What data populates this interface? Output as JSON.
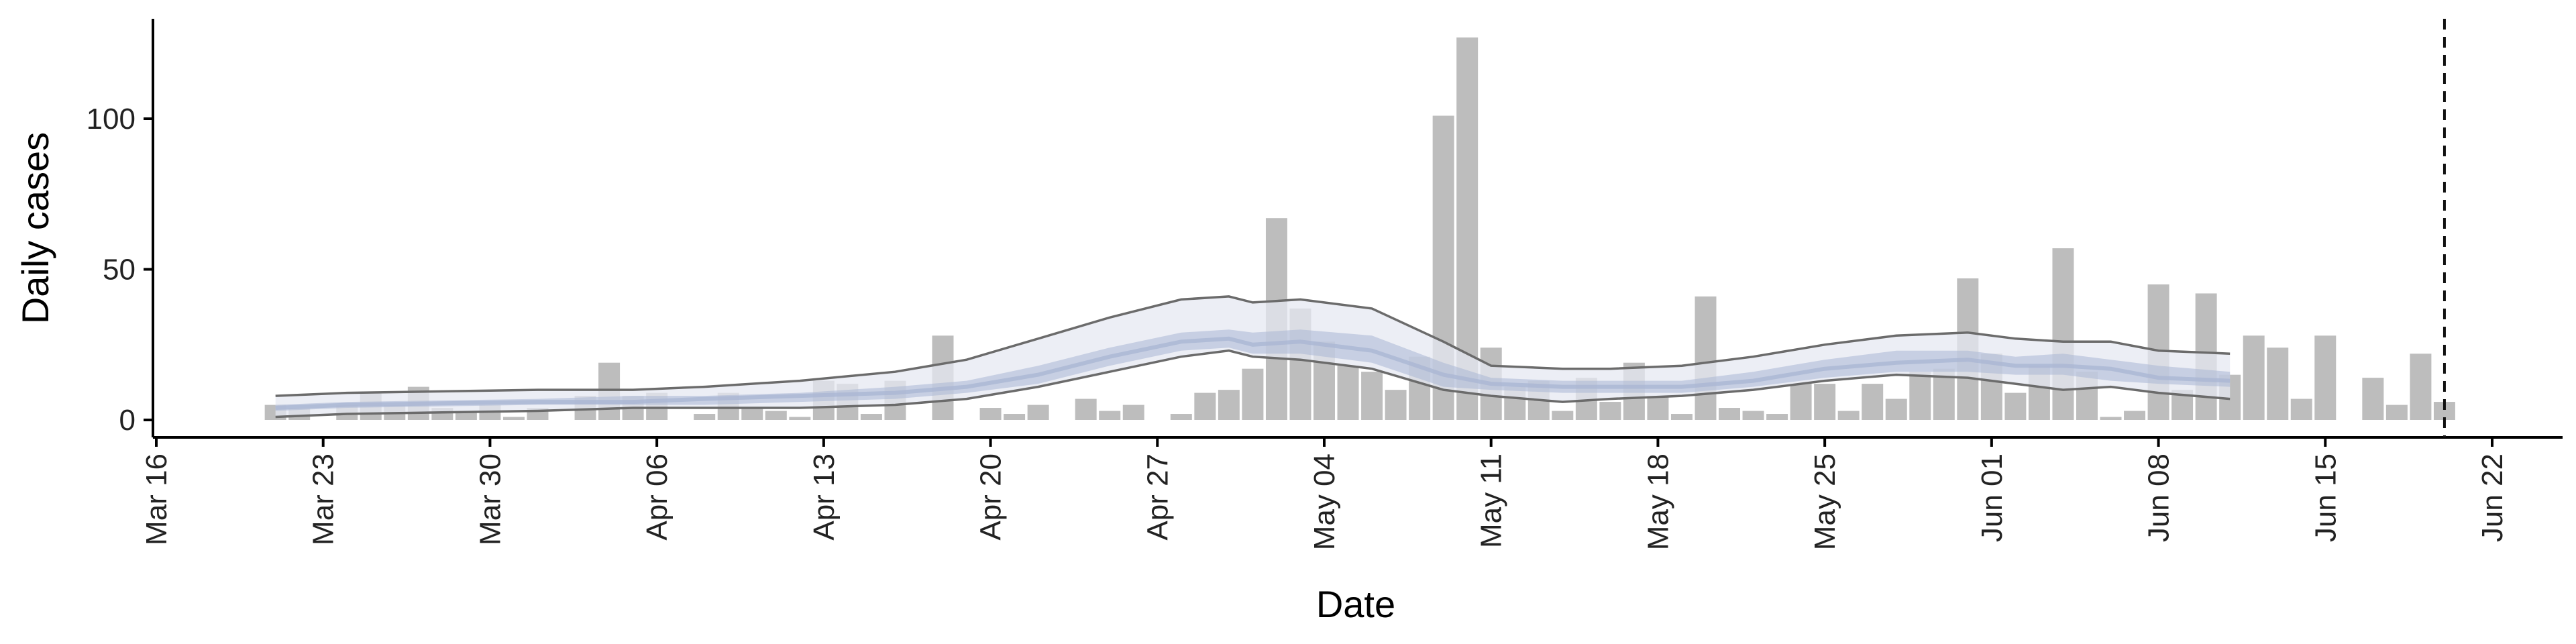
{
  "chart_data": {
    "type": "bar",
    "title": "",
    "xlabel": "Date",
    "ylabel": "Daily cases",
    "x_ticks": [
      "Mar 16",
      "Mar 23",
      "Mar 30",
      "Apr 06",
      "Apr 13",
      "Apr 20",
      "Apr 27",
      "May 04",
      "May 11",
      "May 18",
      "May 25",
      "Jun 01",
      "Jun 08",
      "Jun 15",
      "Jun 22"
    ],
    "x_tick_dates": [
      "2020-03-16",
      "2020-03-23",
      "2020-03-30",
      "2020-04-06",
      "2020-04-13",
      "2020-04-20",
      "2020-04-27",
      "2020-05-04",
      "2020-05-11",
      "2020-05-18",
      "2020-05-25",
      "2020-06-01",
      "2020-06-08",
      "2020-06-15",
      "2020-06-22"
    ],
    "xlim": [
      "2020-03-16",
      "2020-06-24"
    ],
    "y_ticks": [
      0,
      50,
      100
    ],
    "ylim": [
      -6,
      133
    ],
    "grid": false,
    "vline_date": "2020-06-20",
    "colors": {
      "bars": "#bdbdbd",
      "band": "#e6e8f2",
      "median": "#aab6d3",
      "interval_lines": "#6b6b6b",
      "axis": "#000000"
    },
    "bars": {
      "name": "Daily cases",
      "x": [
        "2020-03-21",
        "2020-03-22",
        "2020-03-23",
        "2020-03-24",
        "2020-03-25",
        "2020-03-26",
        "2020-03-27",
        "2020-03-28",
        "2020-03-29",
        "2020-03-30",
        "2020-03-31",
        "2020-04-01",
        "2020-04-02",
        "2020-04-03",
        "2020-04-04",
        "2020-04-05",
        "2020-04-06",
        "2020-04-07",
        "2020-04-08",
        "2020-04-09",
        "2020-04-10",
        "2020-04-11",
        "2020-04-12",
        "2020-04-13",
        "2020-04-14",
        "2020-04-15",
        "2020-04-16",
        "2020-04-17",
        "2020-04-18",
        "2020-04-19",
        "2020-04-20",
        "2020-04-21",
        "2020-04-22",
        "2020-04-23",
        "2020-04-24",
        "2020-04-25",
        "2020-04-26",
        "2020-04-27",
        "2020-04-28",
        "2020-04-29",
        "2020-04-30",
        "2020-05-01",
        "2020-05-02",
        "2020-05-03",
        "2020-05-04",
        "2020-05-05",
        "2020-05-06",
        "2020-05-07",
        "2020-05-08",
        "2020-05-09",
        "2020-05-10",
        "2020-05-11",
        "2020-05-12",
        "2020-05-13",
        "2020-05-14",
        "2020-05-15",
        "2020-05-16",
        "2020-05-17",
        "2020-05-18",
        "2020-05-19",
        "2020-05-20",
        "2020-05-21",
        "2020-05-22",
        "2020-05-23",
        "2020-05-24",
        "2020-05-25",
        "2020-05-26",
        "2020-05-27",
        "2020-05-28",
        "2020-05-29",
        "2020-05-30",
        "2020-05-31",
        "2020-06-01",
        "2020-06-02",
        "2020-06-03",
        "2020-06-04",
        "2020-06-05",
        "2020-06-06",
        "2020-06-07",
        "2020-06-08",
        "2020-06-09",
        "2020-06-10",
        "2020-06-11",
        "2020-06-12",
        "2020-06-13",
        "2020-06-14",
        "2020-06-15",
        "2020-06-16",
        "2020-06-17",
        "2020-06-18",
        "2020-06-19",
        "2020-06-20"
      ],
      "values": [
        5,
        4,
        0,
        5,
        9,
        5,
        11,
        4,
        3,
        5,
        1,
        4,
        0,
        8,
        19,
        8,
        9,
        0,
        2,
        9,
        4,
        3,
        1,
        13,
        12,
        2,
        13,
        0,
        28,
        0,
        4,
        2,
        5,
        0,
        7,
        3,
        5,
        0,
        2,
        9,
        10,
        17,
        67,
        37,
        26,
        18,
        16,
        10,
        21,
        101,
        127,
        24,
        11,
        13,
        3,
        14,
        6,
        19,
        8,
        2,
        41,
        4,
        3,
        2,
        12,
        12,
        3,
        12,
        7,
        16,
        17,
        47,
        22,
        9,
        18,
        57,
        16,
        1,
        3,
        45,
        10,
        42,
        15,
        28,
        24,
        7,
        28,
        0,
        14,
        5,
        22,
        6
      ]
    },
    "intervals": {
      "x": [
        "2020-03-21",
        "2020-03-24",
        "2020-04-01",
        "2020-04-05",
        "2020-04-08",
        "2020-04-12",
        "2020-04-16",
        "2020-04-19",
        "2020-04-22",
        "2020-04-25",
        "2020-04-28",
        "2020-04-30",
        "2020-05-01",
        "2020-05-03",
        "2020-05-06",
        "2020-05-09",
        "2020-05-11",
        "2020-05-14",
        "2020-05-16",
        "2020-05-19",
        "2020-05-22",
        "2020-05-25",
        "2020-05-28",
        "2020-05-31",
        "2020-06-02",
        "2020-06-04",
        "2020-06-06",
        "2020-06-08",
        "2020-06-11"
      ],
      "outer_upper": [
        8,
        9,
        10,
        10,
        11,
        13,
        16,
        20,
        27,
        34,
        40,
        41,
        39,
        40,
        37,
        26,
        18,
        17,
        17,
        18,
        21,
        25,
        28,
        29,
        27,
        26,
        26,
        23,
        22
      ],
      "inner_upper": [
        5,
        6,
        7,
        8,
        8,
        9,
        11,
        13,
        18,
        24,
        29,
        30,
        29,
        30,
        28,
        19,
        14,
        13,
        13,
        13,
        16,
        20,
        23,
        23,
        21,
        22,
        20,
        18,
        16
      ],
      "median": [
        4,
        5,
        6,
        6,
        7,
        8,
        9,
        11,
        15,
        21,
        26,
        27,
        25,
        26,
        23,
        15,
        12,
        11,
        11,
        11,
        13,
        17,
        19,
        20,
        18,
        18,
        17,
        14,
        13
      ],
      "inner_lower": [
        3,
        4,
        5,
        5,
        5,
        6,
        7,
        9,
        12,
        18,
        23,
        24,
        22,
        22,
        19,
        11,
        10,
        9,
        9,
        9,
        11,
        14,
        16,
        16,
        15,
        15,
        13,
        12,
        11
      ],
      "outer_lower": [
        1,
        2,
        3,
        4,
        4,
        4,
        5,
        7,
        11,
        16,
        21,
        23,
        21,
        20,
        17,
        10,
        8,
        6,
        7,
        8,
        10,
        13,
        15,
        14,
        12,
        10,
        11,
        9,
        7
      ]
    }
  }
}
